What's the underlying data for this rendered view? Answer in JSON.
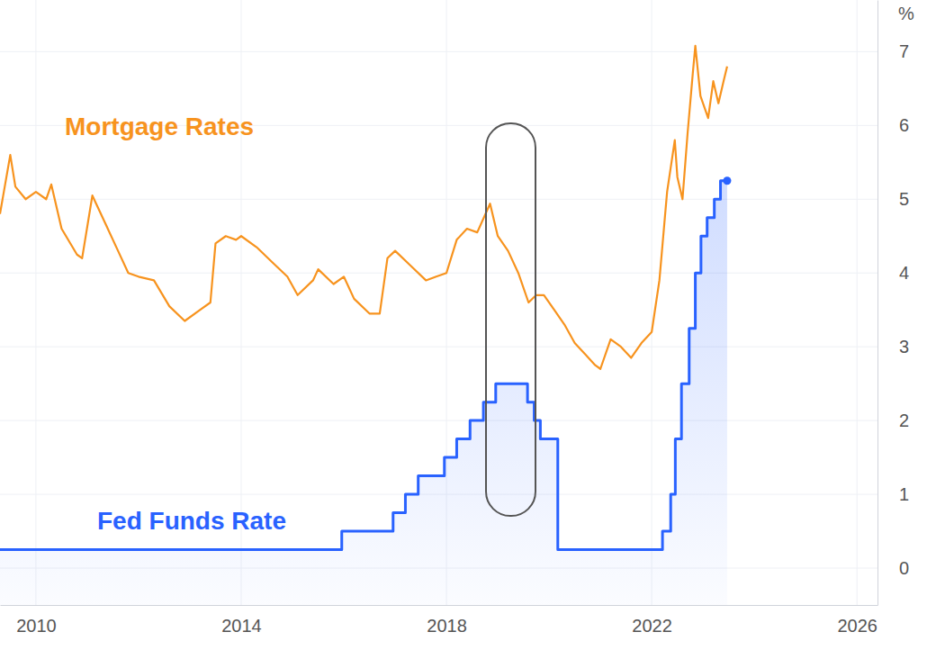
{
  "chart_data": {
    "type": "line",
    "y_label": "%",
    "xlim": [
      2009.3,
      2026.4
    ],
    "xticks": [
      2010,
      2014,
      2018,
      2022,
      2026
    ],
    "ylim": [
      -0.5,
      7.7
    ],
    "yticks": [
      0,
      1,
      2,
      3,
      4,
      5,
      6,
      7
    ],
    "grid": true,
    "series": [
      {
        "name": "Mortgage Rates",
        "color": "#f7931e",
        "type": "line",
        "x": [
          2009.3,
          2009.5,
          2009.6,
          2009.8,
          2010.0,
          2010.2,
          2010.3,
          2010.5,
          2010.8,
          2010.9,
          2011.1,
          2011.2,
          2011.4,
          2011.6,
          2011.8,
          2012.0,
          2012.3,
          2012.6,
          2012.9,
          2013.2,
          2013.4,
          2013.5,
          2013.7,
          2013.9,
          2014.0,
          2014.3,
          2014.6,
          2014.9,
          2015.1,
          2015.4,
          2015.5,
          2015.8,
          2016.0,
          2016.2,
          2016.5,
          2016.7,
          2016.85,
          2017.0,
          2017.3,
          2017.6,
          2017.8,
          2018.0,
          2018.2,
          2018.4,
          2018.6,
          2018.85,
          2019.0,
          2019.2,
          2019.4,
          2019.6,
          2019.75,
          2019.9,
          2020.1,
          2020.3,
          2020.5,
          2020.7,
          2020.9,
          2021.0,
          2021.2,
          2021.4,
          2021.6,
          2021.8,
          2022.0,
          2022.15,
          2022.3,
          2022.45,
          2022.5,
          2022.6,
          2022.7,
          2022.8,
          2022.85,
          2022.95,
          2023.1,
          2023.2,
          2023.3,
          2023.4,
          2023.47
        ],
        "values": [
          4.8,
          5.6,
          5.17,
          5.0,
          5.1,
          5.0,
          5.2,
          4.6,
          4.25,
          4.2,
          5.05,
          4.9,
          4.6,
          4.3,
          4.0,
          3.95,
          3.9,
          3.55,
          3.35,
          3.5,
          3.6,
          4.4,
          4.5,
          4.45,
          4.5,
          4.35,
          4.15,
          3.95,
          3.7,
          3.9,
          4.05,
          3.85,
          3.95,
          3.65,
          3.45,
          3.45,
          4.2,
          4.3,
          4.1,
          3.9,
          3.95,
          4.0,
          4.45,
          4.6,
          4.55,
          4.94,
          4.5,
          4.3,
          4.0,
          3.6,
          3.7,
          3.7,
          3.5,
          3.3,
          3.05,
          2.9,
          2.75,
          2.7,
          3.1,
          3.0,
          2.85,
          3.05,
          3.2,
          3.9,
          5.1,
          5.8,
          5.3,
          5.0,
          5.9,
          6.7,
          7.08,
          6.4,
          6.1,
          6.6,
          6.3,
          6.6,
          6.8
        ]
      },
      {
        "name": "Fed Funds Rate",
        "color": "#2962ff",
        "type": "step_area",
        "x": [
          2009.3,
          2015.96,
          2016.96,
          2017.2,
          2017.45,
          2017.96,
          2018.2,
          2018.46,
          2018.72,
          2018.96,
          2019.58,
          2019.71,
          2019.83,
          2020.17,
          2022.21,
          2022.37,
          2022.46,
          2022.58,
          2022.73,
          2022.85,
          2022.96,
          2023.08,
          2023.22,
          2023.34,
          2023.47
        ],
        "values": [
          0.25,
          0.5,
          0.75,
          1.0,
          1.25,
          1.5,
          1.75,
          2.0,
          2.25,
          2.5,
          2.25,
          2.0,
          1.75,
          0.25,
          0.5,
          1.0,
          1.75,
          2.5,
          3.25,
          4.0,
          4.5,
          4.75,
          5.0,
          5.25,
          5.25
        ]
      }
    ]
  }
}
